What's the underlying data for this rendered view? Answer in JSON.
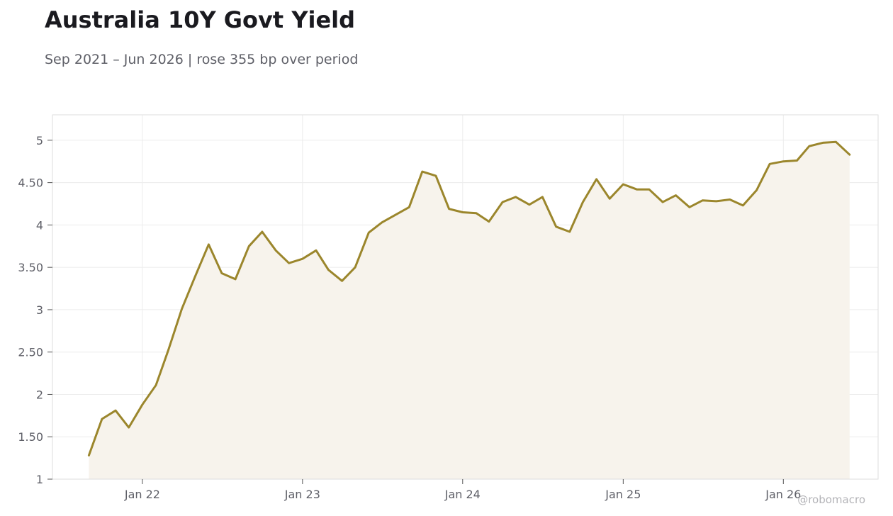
{
  "header": {
    "title": "Australia 10Y Govt Yield",
    "subtitle": "Sep 2021 – Jun 2026 | rose 355 bp over period"
  },
  "watermark": "@robomacro",
  "colors": {
    "line": "#9b862c",
    "fill": "#f7f3ec",
    "grid": "#ececec",
    "frame": "#dedede",
    "tick_text": "#5f6068"
  },
  "chart_data": {
    "type": "area",
    "title": "Australia 10Y Govt Yield",
    "subtitle": "Sep 2021 – Jun 2026 | rose 355 bp over period",
    "xlabel": "",
    "ylabel": "",
    "grid": true,
    "legend": "none",
    "ylim": [
      1,
      5.3
    ],
    "xlim": [
      "2021-06-10",
      "2026-08-05"
    ],
    "x_ticks": [
      {
        "x": "2022-01-01",
        "label": "Jan 22"
      },
      {
        "x": "2023-01-01",
        "label": "Jan 23"
      },
      {
        "x": "2024-01-01",
        "label": "Jan 24"
      },
      {
        "x": "2025-01-01",
        "label": "Jan 25"
      },
      {
        "x": "2026-01-01",
        "label": "Jan 26"
      }
    ],
    "y_ticks": [
      {
        "y": 1,
        "label": "1"
      },
      {
        "y": 1.5,
        "label": "1.50"
      },
      {
        "y": 2,
        "label": "2"
      },
      {
        "y": 2.5,
        "label": "2.50"
      },
      {
        "y": 3,
        "label": "3"
      },
      {
        "y": 3.5,
        "label": "3.50"
      },
      {
        "y": 4,
        "label": "4"
      },
      {
        "y": 4.5,
        "label": "4.50"
      },
      {
        "y": 5,
        "label": "5"
      }
    ],
    "series": [
      {
        "x": [
          "2021-09-01",
          "2021-10-01",
          "2021-11-01",
          "2021-12-01",
          "2022-01-01",
          "2022-02-01",
          "2022-03-01",
          "2022-04-01",
          "2022-05-01",
          "2022-06-01",
          "2022-07-01",
          "2022-08-01",
          "2022-09-01",
          "2022-10-01",
          "2022-11-01",
          "2022-12-01",
          "2023-01-01",
          "2023-02-01",
          "2023-03-01",
          "2023-04-01",
          "2023-05-01",
          "2023-06-01",
          "2023-07-01",
          "2023-08-01",
          "2023-09-01",
          "2023-10-01",
          "2023-11-01",
          "2023-12-01",
          "2024-01-01",
          "2024-02-01",
          "2024-03-01",
          "2024-04-01",
          "2024-05-01",
          "2024-06-01",
          "2024-07-01",
          "2024-08-01",
          "2024-09-01",
          "2024-10-01",
          "2024-11-01",
          "2024-12-01",
          "2025-01-01",
          "2025-02-01",
          "2025-03-01",
          "2025-04-01",
          "2025-05-01",
          "2025-06-01",
          "2025-07-01",
          "2025-08-01",
          "2025-09-01",
          "2025-10-01",
          "2025-11-01",
          "2025-12-01",
          "2026-01-01",
          "2026-02-01",
          "2026-03-01",
          "2026-04-01",
          "2026-05-01",
          "2026-06-01"
        ],
        "y": [
          1.28,
          1.71,
          1.81,
          1.61,
          1.88,
          2.11,
          2.52,
          3.01,
          3.39,
          3.77,
          3.43,
          3.36,
          3.75,
          3.92,
          3.7,
          3.55,
          3.6,
          3.7,
          3.47,
          3.34,
          3.5,
          3.91,
          4.03,
          4.12,
          4.21,
          4.63,
          4.58,
          4.19,
          4.15,
          4.14,
          4.04,
          4.27,
          4.33,
          4.24,
          4.33,
          3.98,
          3.92,
          4.27,
          4.54,
          4.31,
          4.48,
          4.42,
          4.42,
          4.27,
          4.35,
          4.21,
          4.29,
          4.28,
          4.3,
          4.23,
          4.41,
          4.72,
          4.75,
          4.76,
          4.93,
          4.97,
          4.98,
          4.83
        ]
      }
    ]
  }
}
